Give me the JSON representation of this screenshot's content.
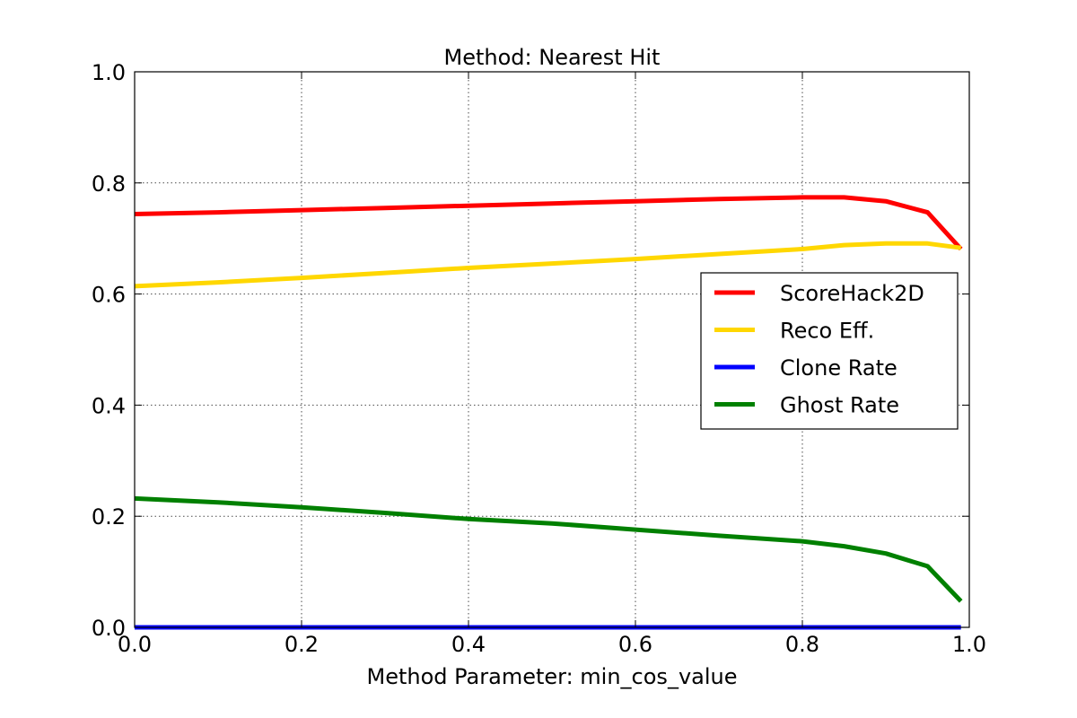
{
  "chart_data": {
    "type": "line",
    "title": "Method: Nearest Hit",
    "xlabel": "Method Parameter: min_cos_value",
    "ylabel": "",
    "xlim": [
      0.0,
      1.0
    ],
    "ylim": [
      0.0,
      1.0
    ],
    "xticks": [
      "0.0",
      "0.2",
      "0.4",
      "0.6",
      "0.8",
      "1.0"
    ],
    "yticks": [
      "0.0",
      "0.2",
      "0.4",
      "0.6",
      "0.8",
      "1.0"
    ],
    "grid": true,
    "legend_position": "center-right",
    "x": [
      0.0,
      0.1,
      0.2,
      0.3,
      0.4,
      0.5,
      0.6,
      0.7,
      0.8,
      0.85,
      0.9,
      0.95,
      0.99
    ],
    "series": [
      {
        "name": "ScoreHack2D",
        "color": "#ff0000",
        "values": [
          0.744,
          0.747,
          0.751,
          0.755,
          0.759,
          0.763,
          0.767,
          0.771,
          0.774,
          0.774,
          0.767,
          0.747,
          0.681
        ]
      },
      {
        "name": "Reco Eff.",
        "color": "#ffd700",
        "values": [
          0.614,
          0.621,
          0.629,
          0.638,
          0.647,
          0.655,
          0.663,
          0.672,
          0.681,
          0.688,
          0.691,
          0.691,
          0.683
        ]
      },
      {
        "name": "Clone Rate",
        "color": "#0000ff",
        "values": [
          0.0,
          0.0,
          0.0,
          0.0,
          0.0,
          0.0,
          0.0,
          0.0,
          0.0,
          0.0,
          0.0,
          0.0,
          0.0
        ]
      },
      {
        "name": "Ghost Rate",
        "color": "#008000",
        "values": [
          0.232,
          0.225,
          0.216,
          0.206,
          0.195,
          0.187,
          0.176,
          0.165,
          0.155,
          0.146,
          0.133,
          0.11,
          0.047
        ]
      }
    ]
  }
}
